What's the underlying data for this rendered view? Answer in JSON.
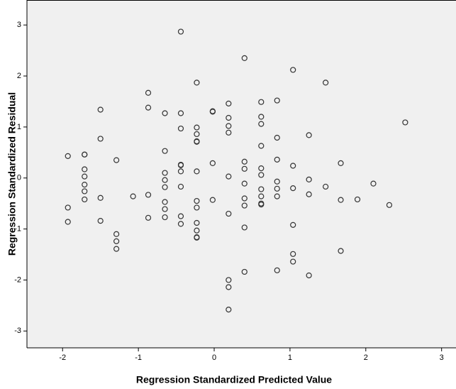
{
  "chart_data": {
    "type": "scatter",
    "x_label": "Regression Standardized Predicted Value",
    "y_label": "Regression Standardized Residual",
    "xlim": [
      -2.47,
      3.19
    ],
    "ylim": [
      -3.33,
      3.49
    ],
    "xticks": [
      -2,
      -1,
      0,
      1,
      2,
      3
    ],
    "yticks": [
      -3,
      -2,
      -1,
      0,
      1,
      2,
      3
    ],
    "grid": false,
    "color": "#333333",
    "x": [
      -1.93,
      -1.93,
      -1.93,
      -1.71,
      -1.71,
      -1.71,
      -1.71,
      -1.71,
      -1.71,
      -1.71,
      -1.5,
      -1.5,
      -1.5,
      -1.5,
      -1.29,
      -1.29,
      -1.29,
      -1.29,
      -1.07,
      -0.87,
      -0.87,
      -0.87,
      -0.87,
      -0.65,
      -0.65,
      -0.65,
      -0.65,
      -0.65,
      -0.65,
      -0.65,
      -0.65,
      -0.44,
      -0.44,
      -0.44,
      -0.44,
      -0.44,
      -0.44,
      -0.44,
      -0.44,
      -0.44,
      -0.23,
      -0.23,
      -0.23,
      -0.23,
      -0.23,
      -0.23,
      -0.23,
      -0.23,
      -0.23,
      -0.23,
      -0.23,
      -0.23,
      -0.02,
      -0.02,
      -0.02,
      -0.02,
      0.19,
      0.19,
      0.19,
      0.19,
      0.19,
      0.19,
      0.19,
      0.19,
      0.19,
      0.4,
      0.4,
      0.4,
      0.4,
      0.4,
      0.4,
      0.4,
      0.4,
      0.62,
      0.62,
      0.62,
      0.62,
      0.62,
      0.62,
      0.62,
      0.62,
      0.62,
      0.62,
      0.83,
      0.83,
      0.83,
      0.83,
      0.83,
      0.83,
      0.83,
      1.04,
      1.04,
      1.04,
      1.04,
      1.04,
      1.04,
      1.25,
      1.25,
      1.25,
      1.25,
      1.47,
      1.47,
      1.67,
      1.67,
      1.67,
      1.89,
      2.1,
      2.31,
      2.52
    ],
    "y": [
      0.43,
      -0.58,
      -0.86,
      0.46,
      0.46,
      0.17,
      0.03,
      -0.13,
      -0.26,
      -0.42,
      1.34,
      0.77,
      -0.39,
      -0.84,
      0.35,
      -1.1,
      -1.24,
      -1.39,
      -0.36,
      1.67,
      1.38,
      -0.33,
      -0.78,
      1.27,
      0.53,
      0.1,
      -0.04,
      -0.18,
      -0.47,
      -0.61,
      -0.77,
      2.87,
      1.27,
      0.97,
      0.26,
      0.25,
      0.13,
      -0.17,
      -0.75,
      -0.9,
      1.87,
      0.99,
      0.86,
      0.72,
      0.71,
      0.13,
      -0.45,
      -0.58,
      -0.88,
      -1.03,
      -1.16,
      -1.17,
      1.31,
      1.3,
      0.29,
      -0.43,
      1.46,
      1.18,
      1.02,
      0.89,
      0.03,
      -0.7,
      -2.0,
      -2.14,
      -2.58,
      2.35,
      0.32,
      0.18,
      -0.11,
      -0.4,
      -0.54,
      -0.97,
      -1.84,
      1.49,
      1.2,
      1.06,
      0.63,
      0.19,
      0.06,
      -0.22,
      -0.36,
      -0.5,
      -0.52,
      1.52,
      0.79,
      0.36,
      -0.07,
      -0.21,
      -0.36,
      -1.81,
      2.12,
      0.24,
      -0.2,
      -0.92,
      -1.49,
      -1.64,
      0.84,
      -0.03,
      -0.32,
      -1.91,
      1.87,
      -0.17,
      0.29,
      -0.43,
      -1.43,
      -0.42,
      -0.11,
      -0.53,
      1.09
    ]
  }
}
